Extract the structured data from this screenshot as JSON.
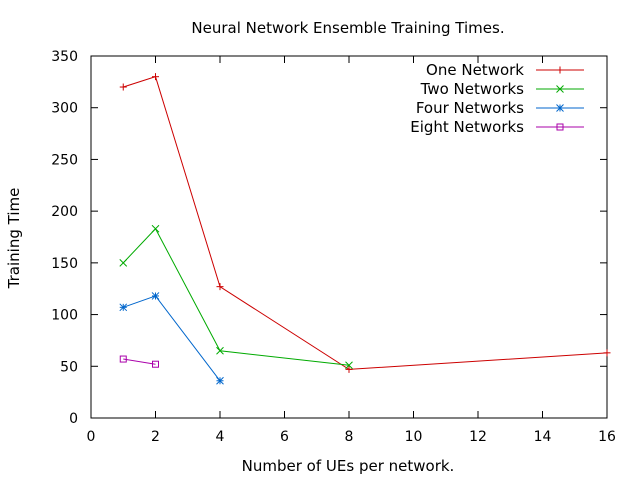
{
  "chart_data": {
    "type": "line",
    "title": "Neural Network Ensemble Training Times.",
    "xlabel": "Number of UEs per network.",
    "ylabel": "Training Time",
    "xlim": [
      0,
      16
    ],
    "ylim": [
      0,
      350
    ],
    "xticks": [
      0,
      2,
      4,
      6,
      8,
      10,
      12,
      14,
      16
    ],
    "yticks": [
      0,
      50,
      100,
      150,
      200,
      250,
      300,
      350
    ],
    "grid": false,
    "legend_position": "top-right",
    "series": [
      {
        "name": "One Network",
        "color": "#cc0000",
        "marker": "plus",
        "x": [
          1,
          2,
          4,
          8,
          16
        ],
        "y": [
          320,
          330,
          127,
          47,
          63
        ]
      },
      {
        "name": "Two Networks",
        "color": "#00aa00",
        "marker": "cross",
        "x": [
          1,
          2,
          4,
          8
        ],
        "y": [
          150,
          183,
          65,
          51
        ]
      },
      {
        "name": "Four Networks",
        "color": "#0066cc",
        "marker": "star",
        "x": [
          1,
          2,
          4
        ],
        "y": [
          107,
          118,
          36
        ]
      },
      {
        "name": "Eight Networks",
        "color": "#aa00aa",
        "marker": "square",
        "x": [
          1,
          2
        ],
        "y": [
          57,
          52
        ]
      }
    ]
  }
}
